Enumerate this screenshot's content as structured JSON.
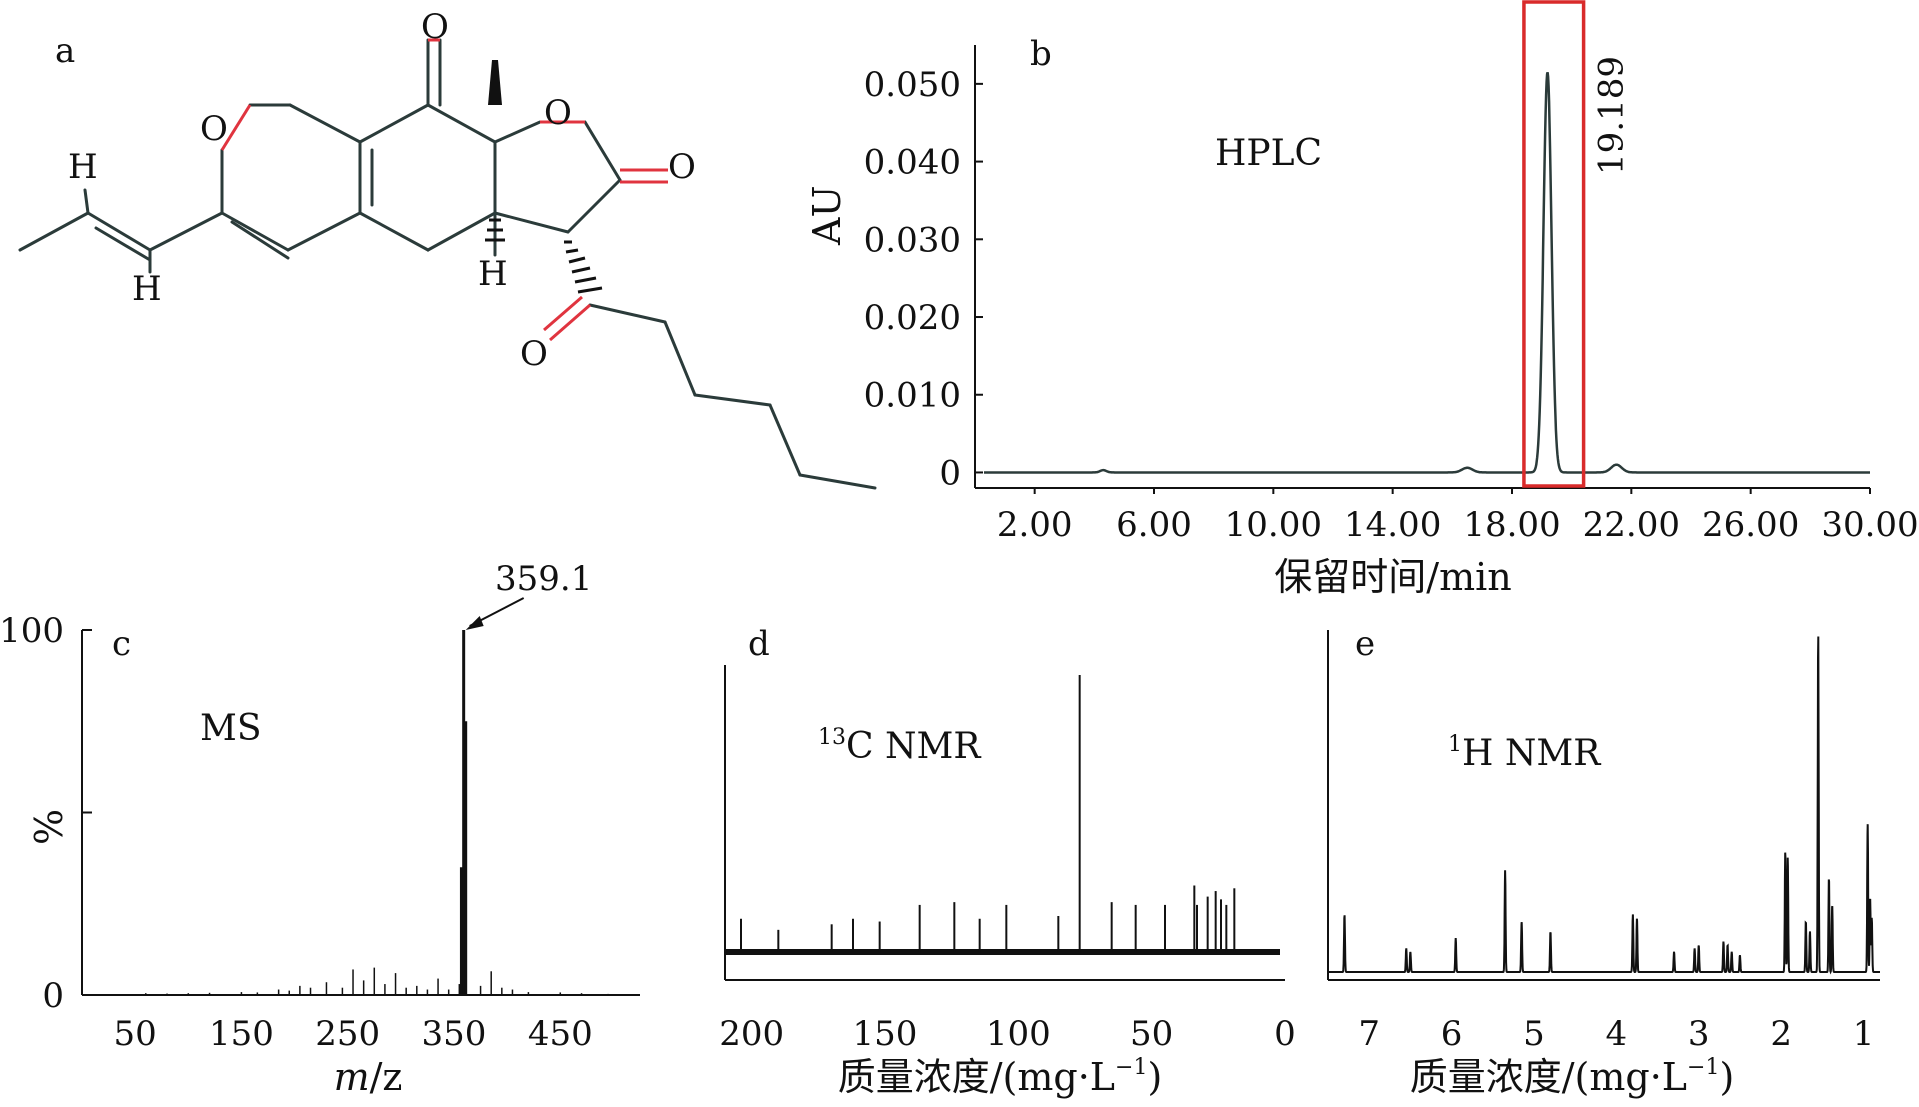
{
  "figure": {
    "panels": {
      "a": {
        "label": "a"
      },
      "b": {
        "label": "b",
        "title": "HPLC",
        "ylabel": "AU",
        "xlabel": "保留时间/min",
        "peak_label": "19.189"
      },
      "c": {
        "label": "c",
        "title": "MS",
        "ylabel": "%",
        "xlabel_italic": "m",
        "xlabel_rest": "/z",
        "peak_label": "359.1"
      },
      "d": {
        "label": "d",
        "title_sup": "13",
        "title_rest": "C NMR",
        "xlabel": "质量浓度/(mg·L",
        "xlabel_sup": "−1",
        "xlabel_end": ")"
      },
      "e": {
        "label": "e",
        "title_sup": "1",
        "title_rest": "H NMR",
        "xlabel": "质量浓度/(mg·L",
        "xlabel_sup": "−1",
        "xlabel_end": ")"
      }
    },
    "structure": {
      "atoms": [
        "O",
        "O",
        "O",
        "O",
        "O",
        "H",
        "H",
        "H"
      ]
    },
    "colors": {
      "line": "#2b3b3a",
      "heteroatom_bond": "#e0343f",
      "highlight": "#d92b2b",
      "spectrum": "#111111"
    }
  },
  "chart_data": [
    {
      "panel": "b",
      "type": "line",
      "title": "HPLC",
      "xlabel": "保留时间/min",
      "ylabel": "AU",
      "xlim": [
        0,
        30
      ],
      "ylim": [
        -0.002,
        0.055
      ],
      "xticks": [
        2,
        6,
        10,
        14,
        18,
        22,
        26,
        30
      ],
      "xtick_labels": [
        "2.00",
        "6.00",
        "10.00",
        "14.00",
        "18.00",
        "22.00",
        "26.00",
        "30.00"
      ],
      "yticks": [
        0,
        0.01,
        0.02,
        0.03,
        0.04,
        0.05
      ],
      "ytick_labels": [
        "0",
        "0.010",
        "0.020",
        "0.030",
        "0.040",
        "0.050"
      ],
      "peaks": [
        {
          "x": 4.3,
          "y": 0.0003,
          "w": 0.15
        },
        {
          "x": 16.5,
          "y": 0.0006,
          "w": 0.25
        },
        {
          "x": 19.189,
          "y": 0.0515,
          "w": 0.19
        },
        {
          "x": 21.5,
          "y": 0.001,
          "w": 0.25
        }
      ],
      "highlight_x": [
        18.4,
        20.4
      ],
      "annotation": "19.189"
    },
    {
      "panel": "c",
      "type": "bar",
      "title": "MS",
      "xlabel": "m/z",
      "ylabel": "%",
      "xlim": [
        0,
        525
      ],
      "ylim": [
        0,
        100
      ],
      "xticks": [
        50,
        150,
        250,
        350,
        450
      ],
      "yticks": [
        0,
        50,
        100
      ],
      "ytick_labels": [
        "0",
        "",
        "100"
      ],
      "x": [
        60,
        80,
        100,
        120,
        150,
        165,
        185,
        195,
        205,
        215,
        230,
        245,
        255,
        265,
        275,
        285,
        295,
        305,
        315,
        325,
        335,
        345,
        355,
        357,
        359.1,
        361,
        375,
        385,
        395,
        405,
        420,
        450,
        470,
        495
      ],
      "values": [
        0.5,
        0.4,
        0.5,
        0.6,
        0.8,
        0.7,
        1.5,
        1.2,
        2.5,
        2.0,
        3.5,
        2.0,
        7.0,
        4.0,
        7.5,
        3.0,
        6.0,
        2.0,
        2.5,
        1.5,
        4.5,
        1.5,
        3,
        35,
        100,
        75,
        2.5,
        6.5,
        2.0,
        1.5,
        0.8,
        0.7,
        0.5,
        0.3
      ],
      "annotation": "359.1"
    },
    {
      "panel": "d",
      "type": "bar",
      "title": "13C NMR",
      "xlabel": "质量浓度/(mg·L−1)",
      "xlim": [
        210,
        0
      ],
      "reversed_x": true,
      "xticks": [
        200,
        150,
        100,
        50,
        0
      ],
      "x": [
        204.0,
        190.0,
        170.0,
        162.0,
        152.0,
        137.0,
        124.0,
        114.5,
        104.5,
        85.0,
        77.0,
        65.0,
        56.0,
        45.0,
        34.0,
        33.0,
        29.0,
        26.0,
        24.0,
        22.0,
        19.0
      ],
      "values": [
        12,
        8,
        10,
        12,
        11,
        17,
        18,
        12,
        17,
        13,
        100,
        18,
        17,
        17,
        24,
        17,
        20,
        22,
        19,
        17,
        23
      ]
    },
    {
      "panel": "e",
      "type": "line",
      "title": "1H NMR",
      "xlabel": "质量浓度/(mg·L−1)",
      "xlim": [
        7.5,
        0.8
      ],
      "reversed_x": true,
      "xticks": [
        7,
        6,
        5,
        4,
        3,
        2,
        1
      ],
      "xtick_labels": [
        "7",
        "6",
        "5",
        "4",
        "3",
        "2",
        "1"
      ],
      "peaks": [
        {
          "x": 7.3,
          "y": 17
        },
        {
          "x": 6.55,
          "y": 7
        },
        {
          "x": 6.5,
          "y": 6
        },
        {
          "x": 5.95,
          "y": 10
        },
        {
          "x": 5.35,
          "y": 30
        },
        {
          "x": 5.15,
          "y": 15
        },
        {
          "x": 4.8,
          "y": 12
        },
        {
          "x": 3.8,
          "y": 17
        },
        {
          "x": 3.75,
          "y": 16
        },
        {
          "x": 3.3,
          "y": 6
        },
        {
          "x": 3.05,
          "y": 7
        },
        {
          "x": 3.0,
          "y": 8
        },
        {
          "x": 2.7,
          "y": 9
        },
        {
          "x": 2.65,
          "y": 8
        },
        {
          "x": 2.6,
          "y": 6
        },
        {
          "x": 2.5,
          "y": 5
        },
        {
          "x": 1.95,
          "y": 36
        },
        {
          "x": 1.92,
          "y": 34
        },
        {
          "x": 1.7,
          "y": 15
        },
        {
          "x": 1.65,
          "y": 12
        },
        {
          "x": 1.55,
          "y": 100
        },
        {
          "x": 1.42,
          "y": 28
        },
        {
          "x": 1.38,
          "y": 20
        },
        {
          "x": 0.95,
          "y": 44
        },
        {
          "x": 0.92,
          "y": 22
        },
        {
          "x": 0.9,
          "y": 16
        }
      ]
    }
  ]
}
